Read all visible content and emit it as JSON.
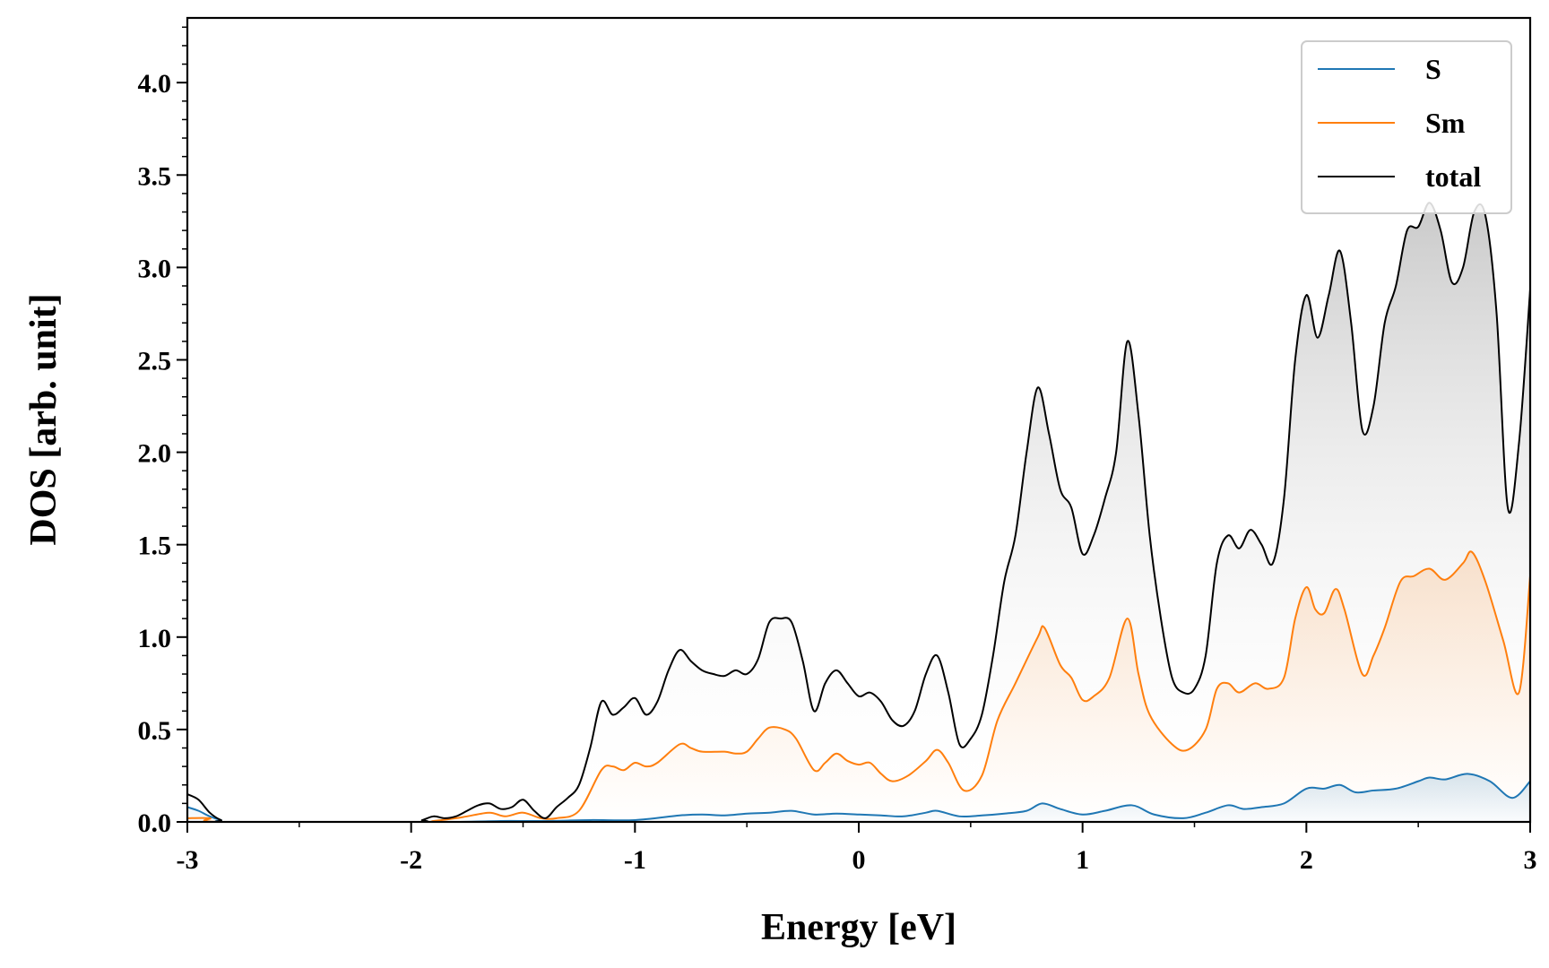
{
  "chart_data": {
    "type": "line",
    "xlabel": "Energy [eV]",
    "ylabel": "DOS [arb. unit]",
    "xlim": [
      -3,
      3
    ],
    "ylim": [
      0,
      4.35
    ],
    "xticks": [
      -3,
      -2,
      -1,
      0,
      1,
      2,
      3
    ],
    "xtick_labels": [
      "-3",
      "-2",
      "-1",
      "0",
      "1",
      "2",
      "3"
    ],
    "yticks": [
      0.0,
      0.5,
      1.0,
      1.5,
      2.0,
      2.5,
      3.0,
      3.5,
      4.0
    ],
    "ytick_labels": [
      "0.0",
      "0.5",
      "1.0",
      "1.5",
      "2.0",
      "2.5",
      "3.0",
      "3.5",
      "4.0"
    ],
    "grid": false,
    "legend_position": "top-right",
    "series": [
      {
        "name": "S",
        "color": "#1f77b4",
        "x": [
          -3.0,
          -2.95,
          -2.9,
          -2.85,
          -2.8,
          -2.0,
          -1.8,
          -1.6,
          -1.4,
          -1.2,
          -1.0,
          -0.8,
          -0.7,
          -0.6,
          -0.5,
          -0.4,
          -0.3,
          -0.2,
          -0.1,
          0.0,
          0.1,
          0.2,
          0.3,
          0.35,
          0.45,
          0.55,
          0.65,
          0.75,
          0.82,
          0.9,
          1.0,
          1.1,
          1.22,
          1.32,
          1.45,
          1.55,
          1.65,
          1.72,
          1.8,
          1.9,
          2.0,
          2.08,
          2.15,
          2.22,
          2.3,
          2.4,
          2.5,
          2.55,
          2.62,
          2.72,
          2.82,
          2.92,
          3.0
        ],
        "y": [
          0.08,
          0.06,
          0.03,
          0.01,
          0.0,
          0.0,
          0.0,
          0.005,
          0.005,
          0.01,
          0.01,
          0.035,
          0.04,
          0.035,
          0.045,
          0.05,
          0.06,
          0.04,
          0.045,
          0.04,
          0.035,
          0.03,
          0.05,
          0.06,
          0.03,
          0.035,
          0.045,
          0.06,
          0.1,
          0.07,
          0.04,
          0.06,
          0.09,
          0.04,
          0.02,
          0.05,
          0.09,
          0.07,
          0.08,
          0.1,
          0.18,
          0.18,
          0.2,
          0.16,
          0.17,
          0.18,
          0.22,
          0.24,
          0.23,
          0.26,
          0.22,
          0.13,
          0.22
        ]
      },
      {
        "name": "Sm",
        "color": "#ff7f0e",
        "x": [
          -3.0,
          -2.9,
          -2.85,
          -2.0,
          -1.9,
          -1.8,
          -1.75,
          -1.65,
          -1.58,
          -1.5,
          -1.42,
          -1.35,
          -1.25,
          -1.15,
          -1.1,
          -1.05,
          -1.0,
          -0.95,
          -0.9,
          -0.8,
          -0.75,
          -0.7,
          -0.6,
          -0.55,
          -0.5,
          -0.45,
          -0.4,
          -0.33,
          -0.28,
          -0.2,
          -0.15,
          -0.1,
          -0.05,
          0.0,
          0.05,
          0.1,
          0.15,
          0.22,
          0.3,
          0.35,
          0.4,
          0.47,
          0.55,
          0.62,
          0.7,
          0.8,
          0.83,
          0.9,
          0.95,
          1.0,
          1.05,
          1.12,
          1.2,
          1.25,
          1.3,
          1.4,
          1.47,
          1.55,
          1.6,
          1.65,
          1.7,
          1.77,
          1.83,
          1.9,
          1.95,
          2.0,
          2.04,
          2.08,
          2.13,
          2.17,
          2.25,
          2.3,
          2.35,
          2.42,
          2.48,
          2.55,
          2.62,
          2.7,
          2.74,
          2.8,
          2.88,
          2.95,
          3.0
        ],
        "y": [
          0.02,
          0.02,
          0.0,
          0.0,
          0.005,
          0.02,
          0.03,
          0.05,
          0.03,
          0.05,
          0.02,
          0.02,
          0.06,
          0.28,
          0.3,
          0.28,
          0.32,
          0.3,
          0.32,
          0.42,
          0.4,
          0.38,
          0.38,
          0.37,
          0.38,
          0.45,
          0.51,
          0.5,
          0.45,
          0.28,
          0.32,
          0.37,
          0.33,
          0.31,
          0.32,
          0.26,
          0.22,
          0.25,
          0.33,
          0.39,
          0.32,
          0.17,
          0.25,
          0.55,
          0.75,
          1.0,
          1.05,
          0.85,
          0.78,
          0.66,
          0.68,
          0.78,
          1.1,
          0.8,
          0.58,
          0.42,
          0.39,
          0.5,
          0.72,
          0.75,
          0.7,
          0.75,
          0.72,
          0.78,
          1.1,
          1.27,
          1.15,
          1.13,
          1.26,
          1.15,
          0.8,
          0.9,
          1.05,
          1.3,
          1.33,
          1.37,
          1.31,
          1.4,
          1.46,
          1.3,
          0.98,
          0.7,
          1.33
        ]
      },
      {
        "name": "total",
        "color": "#000000",
        "x": [
          -3.0,
          -2.95,
          -2.9,
          -2.85,
          -2.8,
          -2.0,
          -1.95,
          -1.9,
          -1.85,
          -1.8,
          -1.75,
          -1.7,
          -1.65,
          -1.6,
          -1.55,
          -1.5,
          -1.45,
          -1.4,
          -1.35,
          -1.3,
          -1.25,
          -1.2,
          -1.15,
          -1.1,
          -1.05,
          -1.0,
          -0.95,
          -0.9,
          -0.85,
          -0.8,
          -0.75,
          -0.7,
          -0.65,
          -0.6,
          -0.55,
          -0.5,
          -0.45,
          -0.4,
          -0.35,
          -0.3,
          -0.25,
          -0.2,
          -0.15,
          -0.1,
          -0.05,
          0.0,
          0.05,
          0.1,
          0.15,
          0.2,
          0.25,
          0.3,
          0.35,
          0.4,
          0.45,
          0.5,
          0.55,
          0.6,
          0.65,
          0.7,
          0.75,
          0.8,
          0.85,
          0.9,
          0.95,
          1.0,
          1.05,
          1.1,
          1.15,
          1.2,
          1.25,
          1.3,
          1.35,
          1.4,
          1.45,
          1.5,
          1.55,
          1.6,
          1.65,
          1.7,
          1.75,
          1.8,
          1.85,
          1.9,
          1.95,
          2.0,
          2.05,
          2.1,
          2.15,
          2.2,
          2.25,
          2.3,
          2.35,
          2.4,
          2.45,
          2.5,
          2.55,
          2.6,
          2.65,
          2.7,
          2.75,
          2.8,
          2.85,
          2.9,
          2.95,
          3.0
        ],
        "y": [
          0.15,
          0.12,
          0.05,
          0.01,
          0.0,
          0.0,
          0.01,
          0.03,
          0.02,
          0.03,
          0.06,
          0.09,
          0.1,
          0.07,
          0.08,
          0.12,
          0.06,
          0.02,
          0.08,
          0.13,
          0.2,
          0.4,
          0.65,
          0.58,
          0.62,
          0.67,
          0.58,
          0.65,
          0.82,
          0.93,
          0.87,
          0.82,
          0.8,
          0.79,
          0.82,
          0.8,
          0.88,
          1.08,
          1.1,
          1.08,
          0.87,
          0.6,
          0.75,
          0.82,
          0.75,
          0.68,
          0.7,
          0.65,
          0.55,
          0.52,
          0.6,
          0.8,
          0.9,
          0.7,
          0.42,
          0.45,
          0.58,
          0.9,
          1.3,
          1.55,
          2.0,
          2.35,
          2.1,
          1.8,
          1.7,
          1.45,
          1.55,
          1.75,
          2.0,
          2.6,
          2.2,
          1.55,
          1.1,
          0.78,
          0.7,
          0.72,
          0.9,
          1.4,
          1.55,
          1.48,
          1.58,
          1.5,
          1.4,
          1.75,
          2.5,
          2.85,
          2.62,
          2.85,
          3.09,
          2.7,
          2.12,
          2.25,
          2.7,
          2.9,
          3.2,
          3.22,
          3.35,
          3.2,
          2.92,
          3.0,
          3.3,
          3.28,
          2.75,
          1.7,
          2.05,
          2.88
        ]
      }
    ]
  }
}
